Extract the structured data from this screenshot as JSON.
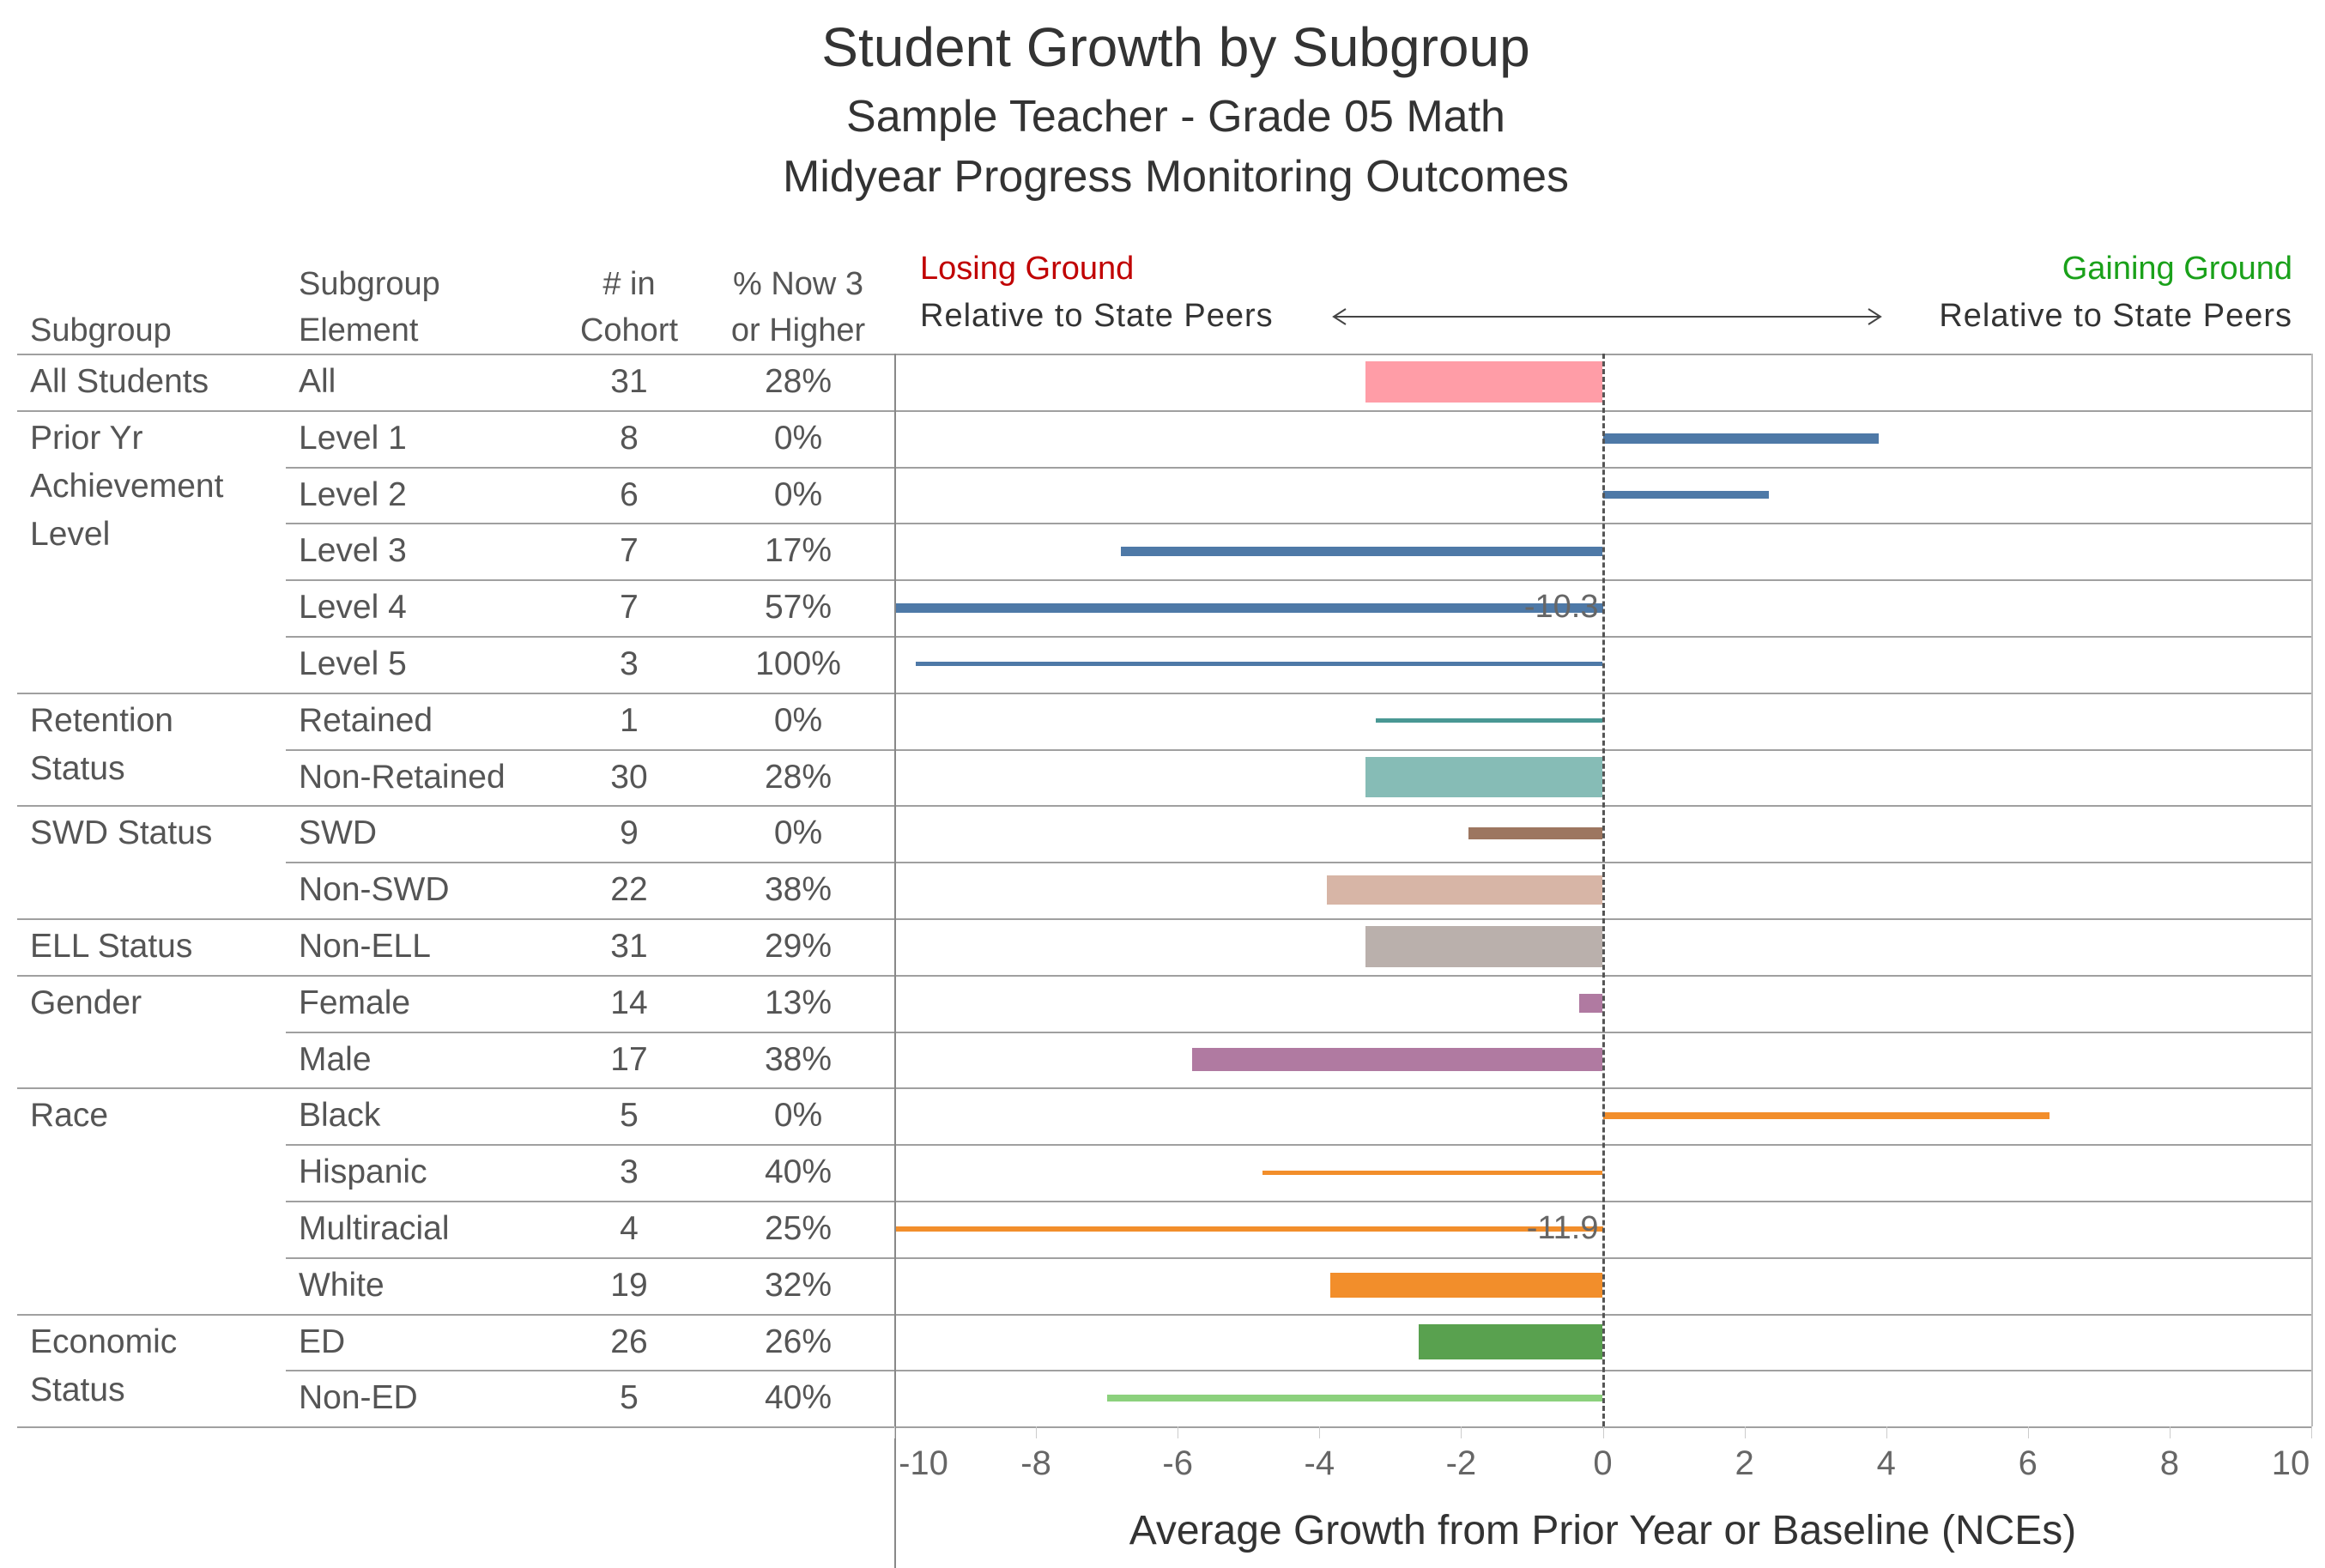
{
  "title": "Student Growth by Subgroup",
  "subtitle1": "Sample Teacher - Grade 05 Math",
  "subtitle2": "Midyear Progress Monitoring Outcomes",
  "headers": {
    "subgroup": "Subgroup",
    "element_line1": "Subgroup",
    "element_line2": "Element",
    "cohort_line1": "# in",
    "cohort_line2": "Cohort",
    "pct_line1": "% Now 3",
    "pct_line2": "or Higher"
  },
  "annotations": {
    "losing": "Losing Ground",
    "gaining": "Gaining Ground",
    "relative_left": "Relative to State Peers",
    "relative_right": "Relative to State Peers",
    "losing_color": "#c00000",
    "gaining_color": "#1aa11a"
  },
  "chart_data": {
    "type": "bar",
    "orientation": "horizontal",
    "xlabel": "Average Growth from Prior Year or Baseline (NCEs)",
    "xlim": [
      -10,
      10
    ],
    "xticks": [
      "-10",
      "-8",
      "-6",
      "-4",
      "-2",
      "0",
      "2",
      "4",
      "6",
      "8",
      "10"
    ],
    "reference_line": 0,
    "groups": [
      {
        "label": "All Students",
        "rows": [
          {
            "element": "All",
            "n": 31,
            "pct": "28%",
            "value": -3.35,
            "color": "#ff9da7"
          }
        ]
      },
      {
        "label": "Prior Yr Achievement Level",
        "rows": [
          {
            "element": "Level 1",
            "n": 8,
            "pct": "0%",
            "value": 3.9,
            "color": "#4e79a7"
          },
          {
            "element": "Level 2",
            "n": 6,
            "pct": "0%",
            "value": 2.35,
            "color": "#4e79a7"
          },
          {
            "element": "Level 3",
            "n": 7,
            "pct": "17%",
            "value": -6.8,
            "color": "#4e79a7"
          },
          {
            "element": "Level 4",
            "n": 7,
            "pct": "57%",
            "value": -10.3,
            "color": "#4e79a7",
            "label": "-10.3"
          },
          {
            "element": "Level 5",
            "n": 3,
            "pct": "100%",
            "value": -9.7,
            "color": "#4e79a7"
          }
        ]
      },
      {
        "label": "Retention Status",
        "rows": [
          {
            "element": "Retained",
            "n": 1,
            "pct": "0%",
            "value": -3.2,
            "color": "#499894"
          },
          {
            "element": "Non-Retained",
            "n": 30,
            "pct": "28%",
            "value": -3.35,
            "color": "#86bcb6"
          }
        ]
      },
      {
        "label": "SWD Status",
        "rows": [
          {
            "element": "SWD",
            "n": 9,
            "pct": "0%",
            "value": -1.9,
            "color": "#9d7660"
          },
          {
            "element": "Non-SWD",
            "n": 22,
            "pct": "38%",
            "value": -3.9,
            "color": "#d7b5a6"
          }
        ]
      },
      {
        "label": "ELL Status",
        "rows": [
          {
            "element": "Non-ELL",
            "n": 31,
            "pct": "29%",
            "value": -3.35,
            "color": "#bab0ac"
          }
        ]
      },
      {
        "label": "Gender",
        "rows": [
          {
            "element": "Female",
            "n": 14,
            "pct": "13%",
            "value": -0.33,
            "color": "#b07aa1"
          },
          {
            "element": "Male",
            "n": 17,
            "pct": "38%",
            "value": -5.8,
            "color": "#b07aa1"
          }
        ]
      },
      {
        "label": "Race",
        "rows": [
          {
            "element": "Black",
            "n": 5,
            "pct": "0%",
            "value": 6.3,
            "color": "#f28e2b"
          },
          {
            "element": "Hispanic",
            "n": 3,
            "pct": "40%",
            "value": -4.8,
            "color": "#f28e2b"
          },
          {
            "element": "Multiracial",
            "n": 4,
            "pct": "25%",
            "value": -11.9,
            "color": "#f28e2b",
            "label": "-11.9"
          },
          {
            "element": "White",
            "n": 19,
            "pct": "32%",
            "value": -3.85,
            "color": "#f28e2b"
          }
        ]
      },
      {
        "label": "Economic Status",
        "rows": [
          {
            "element": "ED",
            "n": 26,
            "pct": "26%",
            "value": -2.6,
            "color": "#59a14f"
          },
          {
            "element": "Non-ED",
            "n": 5,
            "pct": "40%",
            "value": -7.0,
            "color": "#8cd17d"
          }
        ]
      }
    ]
  }
}
